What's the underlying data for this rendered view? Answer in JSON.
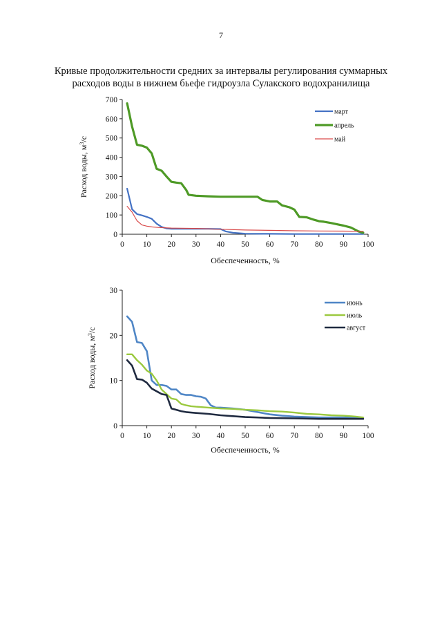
{
  "page": {
    "number": "7",
    "title_line1": "Кривые продолжительности средних за интервалы регулирования суммарных",
    "title_line2": "расходов воды в нижнем бьефе гидроузла Сулакского водохранилища"
  },
  "chart_data": [
    {
      "type": "line",
      "xlabel": "Обеспеченность, %",
      "ylabel": "Расход воды, м",
      "ylabel_sup": "3",
      "ylabel_suffix": "/с",
      "xlim": [
        0,
        100
      ],
      "ylim": [
        0,
        700
      ],
      "xticks": [
        0,
        10,
        20,
        30,
        40,
        50,
        60,
        70,
        80,
        90,
        100
      ],
      "yticks": [
        0,
        100,
        200,
        300,
        400,
        500,
        600,
        700
      ],
      "grid": false,
      "legend_position": "top-right",
      "series": [
        {
          "name": "март",
          "color": "#4472c4",
          "x": [
            2,
            4,
            6,
            8,
            10,
            12,
            14,
            16,
            18,
            20,
            25,
            30,
            35,
            40,
            42,
            45,
            50,
            60,
            70,
            80,
            90,
            98
          ],
          "y": [
            237,
            130,
            105,
            98,
            90,
            80,
            55,
            38,
            30,
            28,
            28,
            28,
            28,
            27,
            15,
            8,
            3,
            2,
            1,
            1,
            1,
            1
          ]
        },
        {
          "name": "апрель",
          "color": "#4e9a26",
          "x": [
            2,
            4,
            6,
            8,
            10,
            12,
            14,
            16,
            18,
            20,
            22,
            24,
            26,
            27,
            30,
            35,
            40,
            45,
            50,
            55,
            57,
            60,
            63,
            65,
            68,
            70,
            72,
            75,
            78,
            80,
            82,
            85,
            88,
            90,
            93,
            96,
            98
          ],
          "y": [
            680,
            560,
            465,
            460,
            450,
            420,
            340,
            330,
            300,
            272,
            268,
            265,
            230,
            205,
            200,
            197,
            195,
            195,
            195,
            195,
            178,
            170,
            170,
            150,
            140,
            128,
            90,
            88,
            75,
            68,
            65,
            58,
            50,
            45,
            35,
            15,
            8
          ]
        },
        {
          "name": "май",
          "color": "#d94a4a",
          "x": [
            2,
            4,
            6,
            8,
            10,
            12,
            15,
            20,
            30,
            40,
            50,
            60,
            70,
            80,
            90,
            98
          ],
          "y": [
            145,
            115,
            70,
            48,
            42,
            38,
            35,
            32,
            30,
            26,
            22,
            20,
            18,
            17,
            16,
            15
          ]
        }
      ]
    },
    {
      "type": "line",
      "xlabel": "Обеспеченность, %",
      "ylabel": "Расход воды, м",
      "ylabel_sup": "3",
      "ylabel_suffix": "/с",
      "xlim": [
        0,
        100
      ],
      "ylim": [
        0,
        30
      ],
      "xticks": [
        0,
        10,
        20,
        30,
        40,
        50,
        60,
        70,
        80,
        90,
        100
      ],
      "yticks": [
        0,
        10,
        20,
        30
      ],
      "grid": false,
      "legend_position": "top-right",
      "series": [
        {
          "name": "июнь",
          "color": "#4f86c6",
          "x": [
            2,
            4,
            6,
            8,
            10,
            12,
            14,
            16,
            18,
            20,
            22,
            24,
            26,
            28,
            30,
            32,
            34,
            36,
            38,
            40,
            45,
            50,
            55,
            60,
            65,
            70,
            80,
            90,
            98
          ],
          "y": [
            24.2,
            23,
            18.5,
            18.3,
            16.5,
            10,
            9,
            9,
            8.8,
            8,
            8,
            7,
            6.8,
            6.8,
            6.5,
            6.4,
            6,
            4.5,
            4,
            4,
            3.8,
            3.5,
            3,
            2.5,
            2.2,
            2,
            1.8,
            1.8,
            1.7
          ]
        },
        {
          "name": "июль",
          "color": "#9bc93f",
          "x": [
            2,
            4,
            6,
            8,
            10,
            12,
            14,
            16,
            18,
            20,
            22,
            24,
            26,
            28,
            30,
            35,
            40,
            45,
            50,
            55,
            60,
            65,
            70,
            75,
            80,
            85,
            90,
            95,
            98
          ],
          "y": [
            15.8,
            15.8,
            14.5,
            13.5,
            12.2,
            11.5,
            10,
            8,
            7,
            6,
            5.8,
            4.8,
            4.5,
            4.3,
            4.2,
            4,
            3.8,
            3.7,
            3.5,
            3.4,
            3.2,
            3.1,
            2.9,
            2.6,
            2.5,
            2.3,
            2.2,
            2,
            1.8
          ]
        },
        {
          "name": "август",
          "color": "#1f2a40",
          "x": [
            2,
            4,
            6,
            8,
            10,
            12,
            14,
            16,
            18,
            20,
            22,
            24,
            26,
            28,
            30,
            35,
            40,
            45,
            50,
            55,
            60,
            70,
            80,
            90,
            98
          ],
          "y": [
            14.5,
            13.3,
            10.3,
            10.2,
            9.5,
            8.2,
            7.6,
            7,
            6.8,
            3.8,
            3.5,
            3.2,
            3,
            2.9,
            2.8,
            2.6,
            2.3,
            2.1,
            1.9,
            1.8,
            1.7,
            1.6,
            1.5,
            1.5,
            1.5
          ]
        }
      ]
    }
  ]
}
